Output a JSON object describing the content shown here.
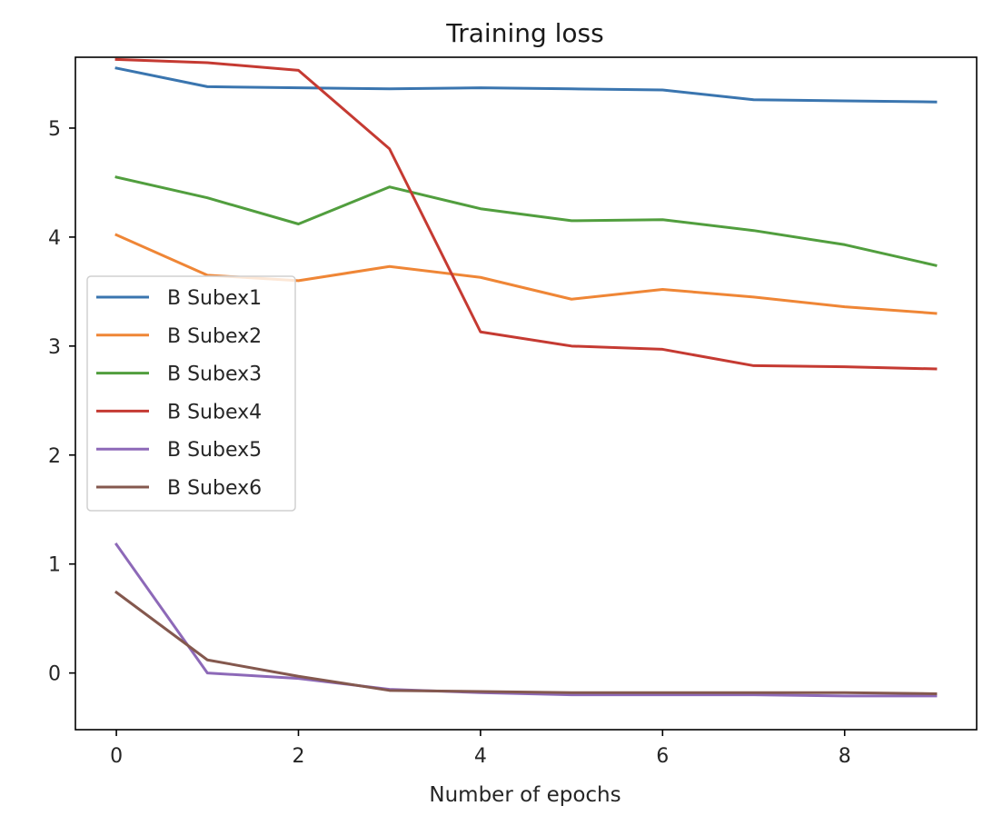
{
  "chart_data": {
    "type": "line",
    "title": "Training loss",
    "xlabel": "Number of epochs",
    "ylabel": "",
    "xlim": [
      -0.45,
      9.45
    ],
    "ylim": [
      -0.52,
      5.65
    ],
    "xticks": [
      0,
      2,
      4,
      6,
      8
    ],
    "yticks": [
      0,
      1,
      2,
      3,
      4,
      5
    ],
    "grid": false,
    "legend_position": "center-left",
    "x": [
      0,
      1,
      2,
      3,
      4,
      5,
      6,
      7,
      8,
      9
    ],
    "series": [
      {
        "name": "B Subex1",
        "color": "#3a75af",
        "values": [
          5.55,
          5.38,
          5.37,
          5.36,
          5.37,
          5.36,
          5.35,
          5.26,
          5.25,
          5.24
        ]
      },
      {
        "name": "B Subex2",
        "color": "#ef8636",
        "values": [
          4.02,
          3.65,
          3.6,
          3.73,
          3.63,
          3.43,
          3.52,
          3.45,
          3.36,
          3.3
        ]
      },
      {
        "name": "B Subex3",
        "color": "#519e3e",
        "values": [
          4.55,
          4.36,
          4.12,
          4.46,
          4.26,
          4.15,
          4.16,
          4.06,
          3.93,
          3.74
        ]
      },
      {
        "name": "B Subex4",
        "color": "#c53a32",
        "values": [
          5.63,
          5.6,
          5.53,
          4.81,
          3.13,
          3.0,
          2.97,
          2.82,
          2.81,
          2.79
        ]
      },
      {
        "name": "B Subex5",
        "color": "#8d69b8",
        "values": [
          1.18,
          0.0,
          -0.05,
          -0.15,
          -0.18,
          -0.2,
          -0.2,
          -0.2,
          -0.21,
          -0.21
        ]
      },
      {
        "name": "B Subex6",
        "color": "#84584e",
        "values": [
          0.74,
          0.12,
          -0.03,
          -0.16,
          -0.17,
          -0.18,
          -0.18,
          -0.18,
          -0.18,
          -0.19
        ]
      }
    ]
  }
}
